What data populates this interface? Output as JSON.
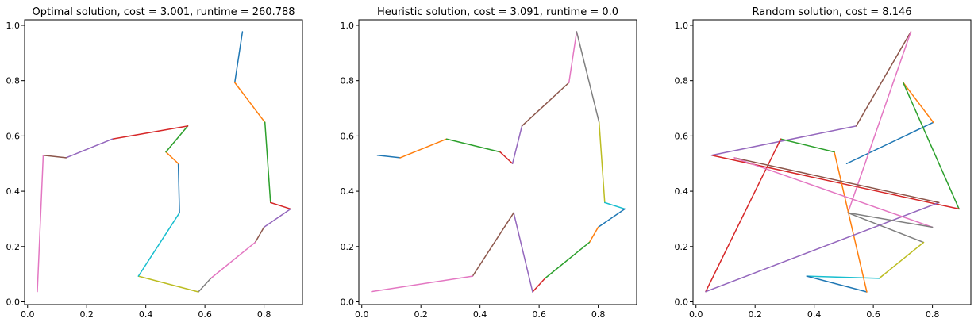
{
  "figure": {
    "background": "#ffffff",
    "segment_colors": [
      "#1f77b4",
      "#ff7f0e",
      "#2ca02c",
      "#d62728",
      "#9467bd",
      "#8c564b",
      "#e377c2",
      "#7f7f7f",
      "#bcbd22",
      "#17becf"
    ]
  },
  "chart_data": [
    {
      "type": "line",
      "title": "Optimal solution, cost = 3.001, runtime = 260.788",
      "xlabel": "",
      "ylabel": "",
      "xlim": [
        -0.01,
        0.93
      ],
      "ylim": [
        -0.01,
        1.02
      ],
      "xticks": [
        0.0,
        0.2,
        0.4,
        0.6,
        0.8
      ],
      "xtick_labels": [
        "0.0",
        "0.2",
        "0.4",
        "0.6",
        "0.8"
      ],
      "yticks": [
        0.0,
        0.2,
        0.4,
        0.6,
        0.8,
        1.0
      ],
      "ytick_labels": [
        "0.0",
        "0.2",
        "0.4",
        "0.6",
        "0.8",
        "1.0"
      ],
      "grid": false,
      "path": [
        [
          0.727,
          0.977
        ],
        [
          0.701,
          0.793
        ],
        [
          0.803,
          0.649
        ],
        [
          0.822,
          0.359
        ],
        [
          0.89,
          0.336
        ],
        [
          0.8,
          0.27
        ],
        [
          0.77,
          0.215
        ],
        [
          0.62,
          0.085
        ],
        [
          0.578,
          0.036
        ],
        [
          0.375,
          0.093
        ],
        [
          0.514,
          0.322
        ],
        [
          0.51,
          0.5
        ],
        [
          0.468,
          0.542
        ],
        [
          0.542,
          0.636
        ],
        [
          0.287,
          0.589
        ],
        [
          0.13,
          0.521
        ],
        [
          0.053,
          0.53
        ],
        [
          0.033,
          0.037
        ]
      ]
    },
    {
      "type": "line",
      "title": "Heuristic solution, cost = 3.091, runtime = 0.0",
      "xlabel": "",
      "ylabel": "",
      "xlim": [
        -0.01,
        0.93
      ],
      "ylim": [
        -0.01,
        1.02
      ],
      "xticks": [
        0.0,
        0.2,
        0.4,
        0.6,
        0.8
      ],
      "xtick_labels": [
        "0.0",
        "0.2",
        "0.4",
        "0.6",
        "0.8"
      ],
      "yticks": [
        0.0,
        0.2,
        0.4,
        0.6,
        0.8,
        1.0
      ],
      "ytick_labels": [
        "0.0",
        "0.2",
        "0.4",
        "0.6",
        "0.8",
        "1.0"
      ],
      "grid": false,
      "path": [
        [
          0.053,
          0.53
        ],
        [
          0.13,
          0.521
        ],
        [
          0.287,
          0.589
        ],
        [
          0.468,
          0.542
        ],
        [
          0.51,
          0.5
        ],
        [
          0.542,
          0.636
        ],
        [
          0.701,
          0.793
        ],
        [
          0.727,
          0.977
        ],
        [
          0.803,
          0.649
        ],
        [
          0.822,
          0.359
        ],
        [
          0.89,
          0.336
        ],
        [
          0.8,
          0.27
        ],
        [
          0.77,
          0.215
        ],
        [
          0.62,
          0.085
        ],
        [
          0.578,
          0.036
        ],
        [
          0.514,
          0.322
        ],
        [
          0.375,
          0.093
        ],
        [
          0.033,
          0.037
        ]
      ]
    },
    {
      "type": "line",
      "title": "Random solution, cost = 8.146",
      "xlabel": "",
      "ylabel": "",
      "xlim": [
        -0.01,
        0.93
      ],
      "ylim": [
        -0.01,
        1.02
      ],
      "xticks": [
        0.0,
        0.2,
        0.4,
        0.6,
        0.8
      ],
      "xtick_labels": [
        "0.0",
        "0.2",
        "0.4",
        "0.6",
        "0.8"
      ],
      "yticks": [
        0.0,
        0.2,
        0.4,
        0.6,
        0.8,
        1.0
      ],
      "ytick_labels": [
        "0.0",
        "0.2",
        "0.4",
        "0.6",
        "0.8",
        "1.0"
      ],
      "grid": false,
      "path": [
        [
          0.51,
          0.5
        ],
        [
          0.803,
          0.649
        ],
        [
          0.701,
          0.793
        ],
        [
          0.89,
          0.336
        ],
        [
          0.053,
          0.53
        ],
        [
          0.542,
          0.636
        ],
        [
          0.727,
          0.977
        ],
        [
          0.514,
          0.322
        ],
        [
          0.77,
          0.215
        ],
        [
          0.62,
          0.085
        ],
        [
          0.375,
          0.093
        ],
        [
          0.578,
          0.036
        ],
        [
          0.468,
          0.542
        ],
        [
          0.287,
          0.589
        ],
        [
          0.033,
          0.037
        ],
        [
          0.822,
          0.359
        ],
        [
          0.13,
          0.521
        ],
        [
          0.8,
          0.27
        ],
        [
          0.514,
          0.322
        ]
      ]
    }
  ]
}
